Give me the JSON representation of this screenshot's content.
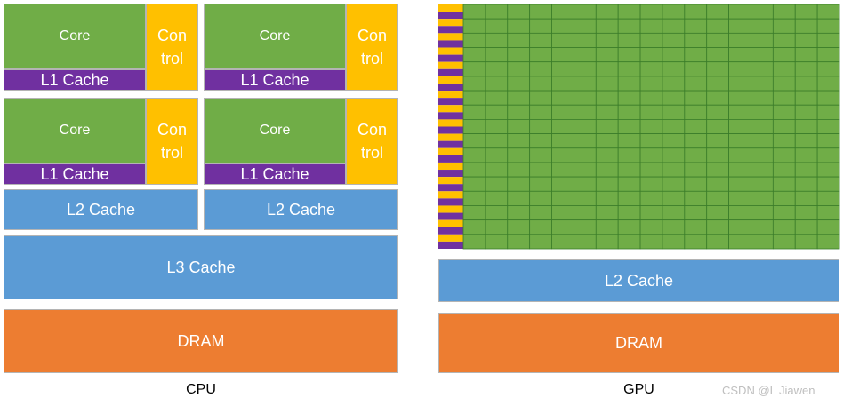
{
  "cpu": {
    "caption": "CPU",
    "core_label": "Core",
    "l1_label": "L1 Cache",
    "control_line1": "Con",
    "control_line2": "trol",
    "l2_label": "L2 Cache",
    "l3_label": "L3 Cache",
    "dram_label": "DRAM"
  },
  "gpu": {
    "caption": "GPU",
    "l2_label": "L2 Cache",
    "dram_label": "DRAM",
    "grid_rows": 17,
    "grid_cols": 17
  },
  "watermark": "CSDN @L Jiawen",
  "colors": {
    "core": "#70ad47",
    "l1_cache": "#7030a0",
    "control": "#ffc000",
    "cache": "#5b9bd5",
    "dram": "#ed7d31",
    "grid_line": "#3b7d2a"
  }
}
